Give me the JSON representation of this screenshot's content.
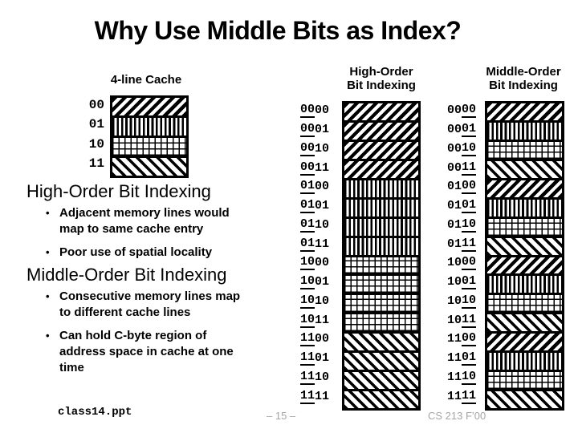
{
  "title": "Why Use Middle Bits as Index?",
  "bullet_char": "•",
  "colors": {
    "ink": "#000000",
    "paper": "#ffffff",
    "footer_gray": "#a6a6a6"
  },
  "cache": {
    "heading": "4-line Cache",
    "rows": [
      {
        "label": "00",
        "pattern": "diagf"
      },
      {
        "label": "01",
        "pattern": "vert"
      },
      {
        "label": "10",
        "pattern": "grid"
      },
      {
        "label": "11",
        "pattern": "diagb"
      }
    ]
  },
  "sections": [
    {
      "heading": "High-Order Bit Indexing",
      "bullets": [
        "Adjacent memory lines would\nmap to same cache entry",
        "Poor use of spatial locality"
      ]
    },
    {
      "heading": "Middle-Order Bit Indexing",
      "bullets": [
        "Consecutive memory lines map\nto different cache lines",
        "Can hold C-byte region of\naddress space in cache at one\ntime"
      ]
    }
  ],
  "columns": [
    {
      "heading": "High-Order\nBit Indexing",
      "underlined_bits": "first",
      "rows": [
        {
          "label": "0000",
          "pattern": "diagf"
        },
        {
          "label": "0001",
          "pattern": "diagf"
        },
        {
          "label": "0010",
          "pattern": "diagf"
        },
        {
          "label": "0011",
          "pattern": "diagf"
        },
        {
          "label": "0100",
          "pattern": "vert"
        },
        {
          "label": "0101",
          "pattern": "vert"
        },
        {
          "label": "0110",
          "pattern": "vert"
        },
        {
          "label": "0111",
          "pattern": "vert"
        },
        {
          "label": "1000",
          "pattern": "grid"
        },
        {
          "label": "1001",
          "pattern": "grid"
        },
        {
          "label": "1010",
          "pattern": "grid"
        },
        {
          "label": "1011",
          "pattern": "grid"
        },
        {
          "label": "1100",
          "pattern": "diagb"
        },
        {
          "label": "1101",
          "pattern": "diagb"
        },
        {
          "label": "1110",
          "pattern": "diagb"
        },
        {
          "label": "1111",
          "pattern": "diagb"
        }
      ]
    },
    {
      "heading": "Middle-Order\nBit Indexing",
      "underlined_bits": "last",
      "rows": [
        {
          "label": "0000",
          "pattern": "diagf"
        },
        {
          "label": "0001",
          "pattern": "vert"
        },
        {
          "label": "0010",
          "pattern": "grid"
        },
        {
          "label": "0011",
          "pattern": "diagb"
        },
        {
          "label": "0100",
          "pattern": "diagf"
        },
        {
          "label": "0101",
          "pattern": "vert"
        },
        {
          "label": "0110",
          "pattern": "grid"
        },
        {
          "label": "0111",
          "pattern": "diagb"
        },
        {
          "label": "1000",
          "pattern": "diagf"
        },
        {
          "label": "1001",
          "pattern": "vert"
        },
        {
          "label": "1010",
          "pattern": "grid"
        },
        {
          "label": "1011",
          "pattern": "diagb"
        },
        {
          "label": "1100",
          "pattern": "diagf"
        },
        {
          "label": "1101",
          "pattern": "vert"
        },
        {
          "label": "1110",
          "pattern": "grid"
        },
        {
          "label": "1111",
          "pattern": "diagb"
        }
      ]
    }
  ],
  "footer": {
    "filename": "class14.ppt",
    "page_label": "– 15 –",
    "course_label": "CS 213 F’00"
  }
}
